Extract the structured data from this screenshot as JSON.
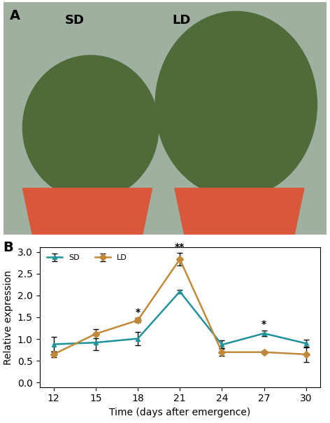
{
  "photo": {
    "label": "A",
    "texts": [
      "SD",
      "LD"
    ]
  },
  "chart_data": {
    "type": "line",
    "panel_label": "B",
    "x_label": "Time (days after emergence)",
    "y_label": "Relative expression",
    "x": [
      12,
      15,
      18,
      21,
      24,
      27,
      30
    ],
    "series": [
      {
        "name": "SD",
        "color": "#1f9399",
        "marker": "triangle",
        "line_style": "solid",
        "values": [
          0.88,
          0.92,
          1.01,
          2.09,
          0.87,
          1.13,
          0.9
        ],
        "errors": [
          0.17,
          0.17,
          0.16,
          0.04,
          0.1,
          0.07,
          0.09
        ]
      },
      {
        "name": "LD",
        "color": "#c0893a",
        "marker": "diamond",
        "line_style": "solid",
        "values": [
          0.65,
          1.12,
          1.43,
          2.83,
          0.7,
          0.7,
          0.65
        ],
        "errors": [
          0.06,
          0.1,
          0.05,
          0.14,
          0.09,
          0.03,
          0.17
        ]
      }
    ],
    "annotations": [
      {
        "text": "*",
        "x": 18,
        "y": 1.5
      },
      {
        "text": "**",
        "x": 21,
        "y": 2.99
      },
      {
        "text": "*",
        "x": 27,
        "y": 1.22
      }
    ],
    "xlim": [
      11,
      31
    ],
    "xticks": [
      12,
      15,
      18,
      21,
      24,
      27,
      30
    ],
    "ylim": [
      -0.1,
      3.1
    ],
    "yticks": [
      {
        "value": 0,
        "label": "0.0"
      },
      {
        "value": 0.5,
        "label": "0.5"
      },
      {
        "value": 1.0,
        "label": "1.0"
      },
      {
        "value": 1.5,
        "label": "1.5"
      },
      {
        "value": 2.0,
        "label": "2.0"
      },
      {
        "value": 2.5,
        "label": "2.5"
      },
      {
        "value": 3.0,
        "label": "3.0"
      }
    ],
    "legend": "upper left",
    "grid": false
  }
}
